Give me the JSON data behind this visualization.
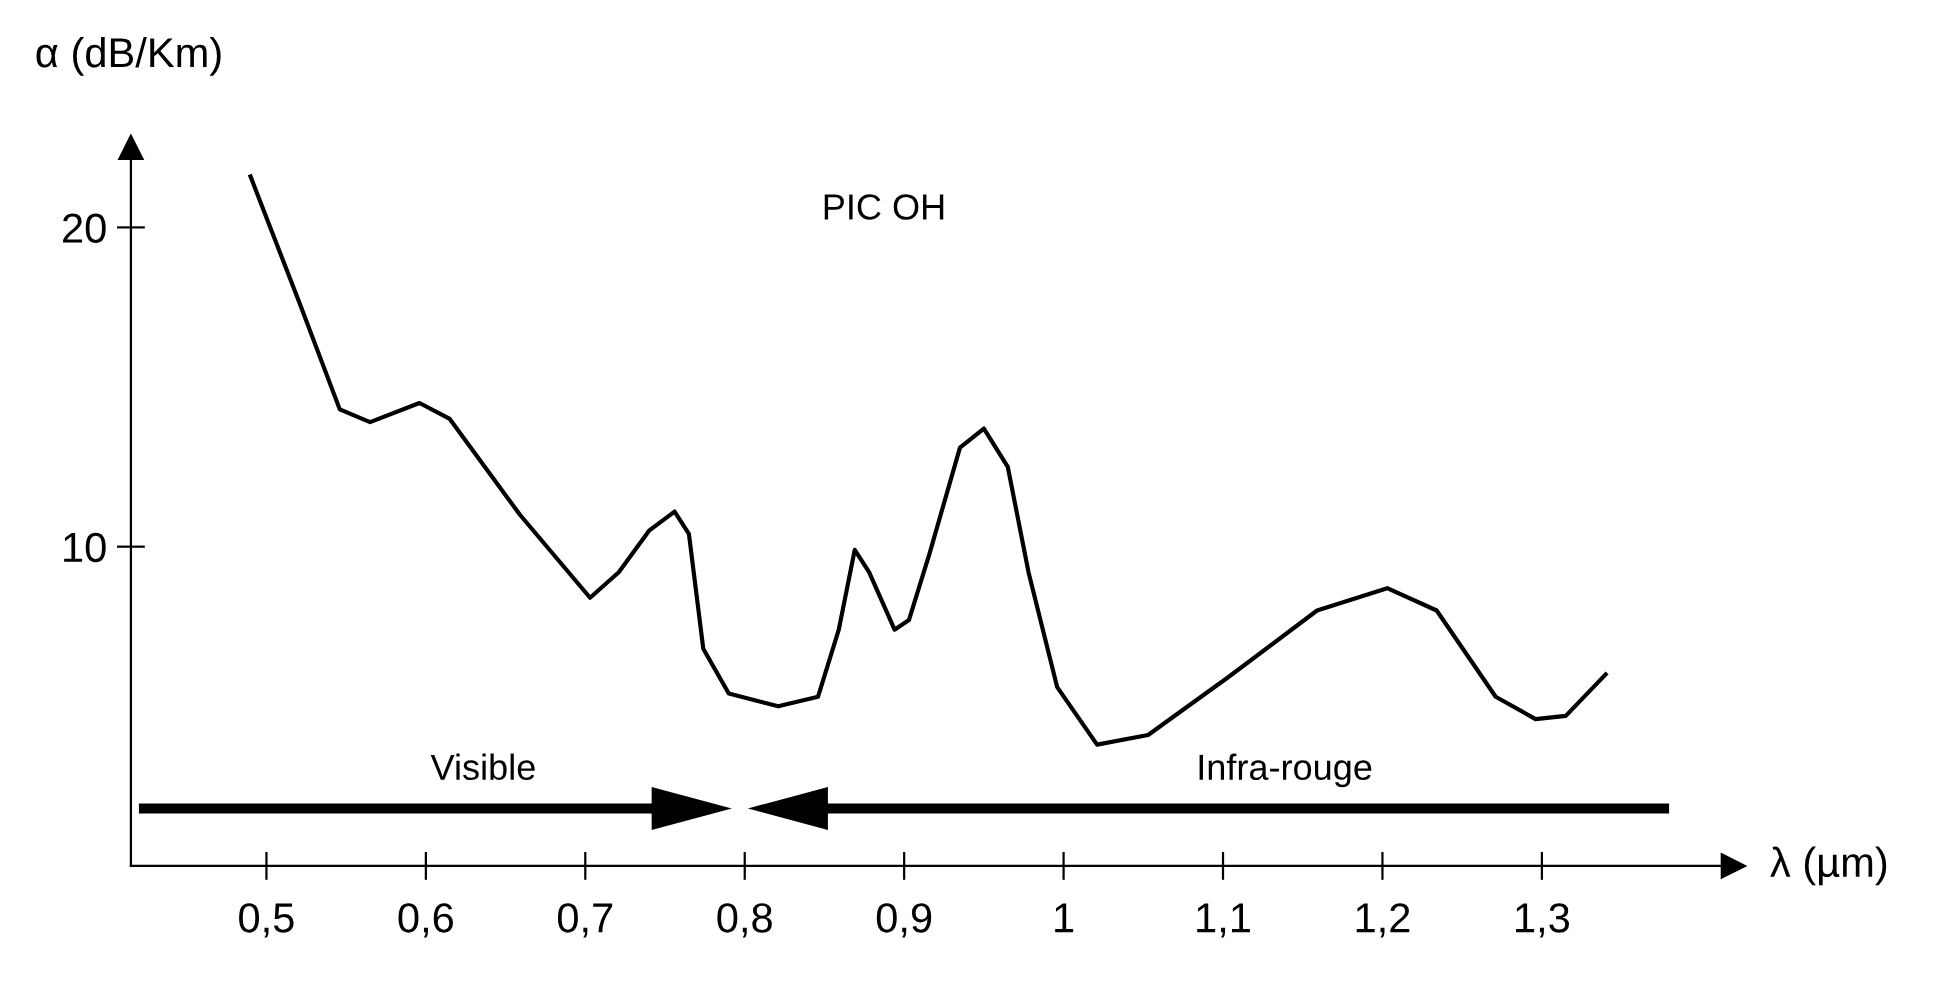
{
  "chart_data": {
    "type": "line",
    "xlabel": "λ (µm)",
    "ylabel": "α (dB/Km)",
    "annotations": [
      "PIC OH",
      "Visible",
      "Infra-rouge"
    ],
    "x": [
      0.49,
      0.521,
      0.546,
      0.565,
      0.596,
      0.615,
      0.659,
      0.703,
      0.721,
      0.74,
      0.756,
      0.765,
      0.774,
      0.79,
      0.821,
      0.846,
      0.859,
      0.869,
      0.878,
      0.894,
      0.903,
      0.916,
      0.935,
      0.95,
      0.965,
      0.978,
      0.996,
      1.021,
      1.053,
      1.103,
      1.159,
      1.203,
      1.234,
      1.271,
      1.296,
      1.315,
      1.34
    ],
    "series": [
      {
        "color": "#000000",
        "values": [
          21.6,
          17.6,
          14.3,
          13.9,
          14.5,
          14.0,
          11.0,
          8.4,
          9.2,
          10.5,
          11.1,
          10.4,
          6.8,
          5.4,
          5.0,
          5.3,
          7.4,
          9.9,
          9.2,
          7.4,
          7.7,
          9.8,
          13.1,
          13.7,
          12.5,
          9.2,
          5.6,
          3.8,
          4.1,
          5.9,
          8.0,
          8.7,
          8.0,
          5.3,
          4.6,
          4.7,
          6.0
        ]
      }
    ],
    "xlim": [
      0.415,
      1.42
    ],
    "ylim": [
      0,
      22.5
    ],
    "xticks": [
      {
        "value": 0.5,
        "label": "0,5"
      },
      {
        "value": 0.6,
        "label": "0,6"
      },
      {
        "value": 0.7,
        "label": "0,7"
      },
      {
        "value": 0.8,
        "label": "0,8"
      },
      {
        "value": 0.9,
        "label": "0,9"
      },
      {
        "value": 1,
        "label": "1"
      },
      {
        "value": 1.1,
        "label": "1,1"
      },
      {
        "value": 1.2,
        "label": "1,2"
      },
      {
        "value": 1.3,
        "label": "1,3"
      }
    ],
    "yticks": [
      10,
      20
    ],
    "grid": false,
    "legend": false,
    "marker": "none",
    "line_style": "solid"
  }
}
